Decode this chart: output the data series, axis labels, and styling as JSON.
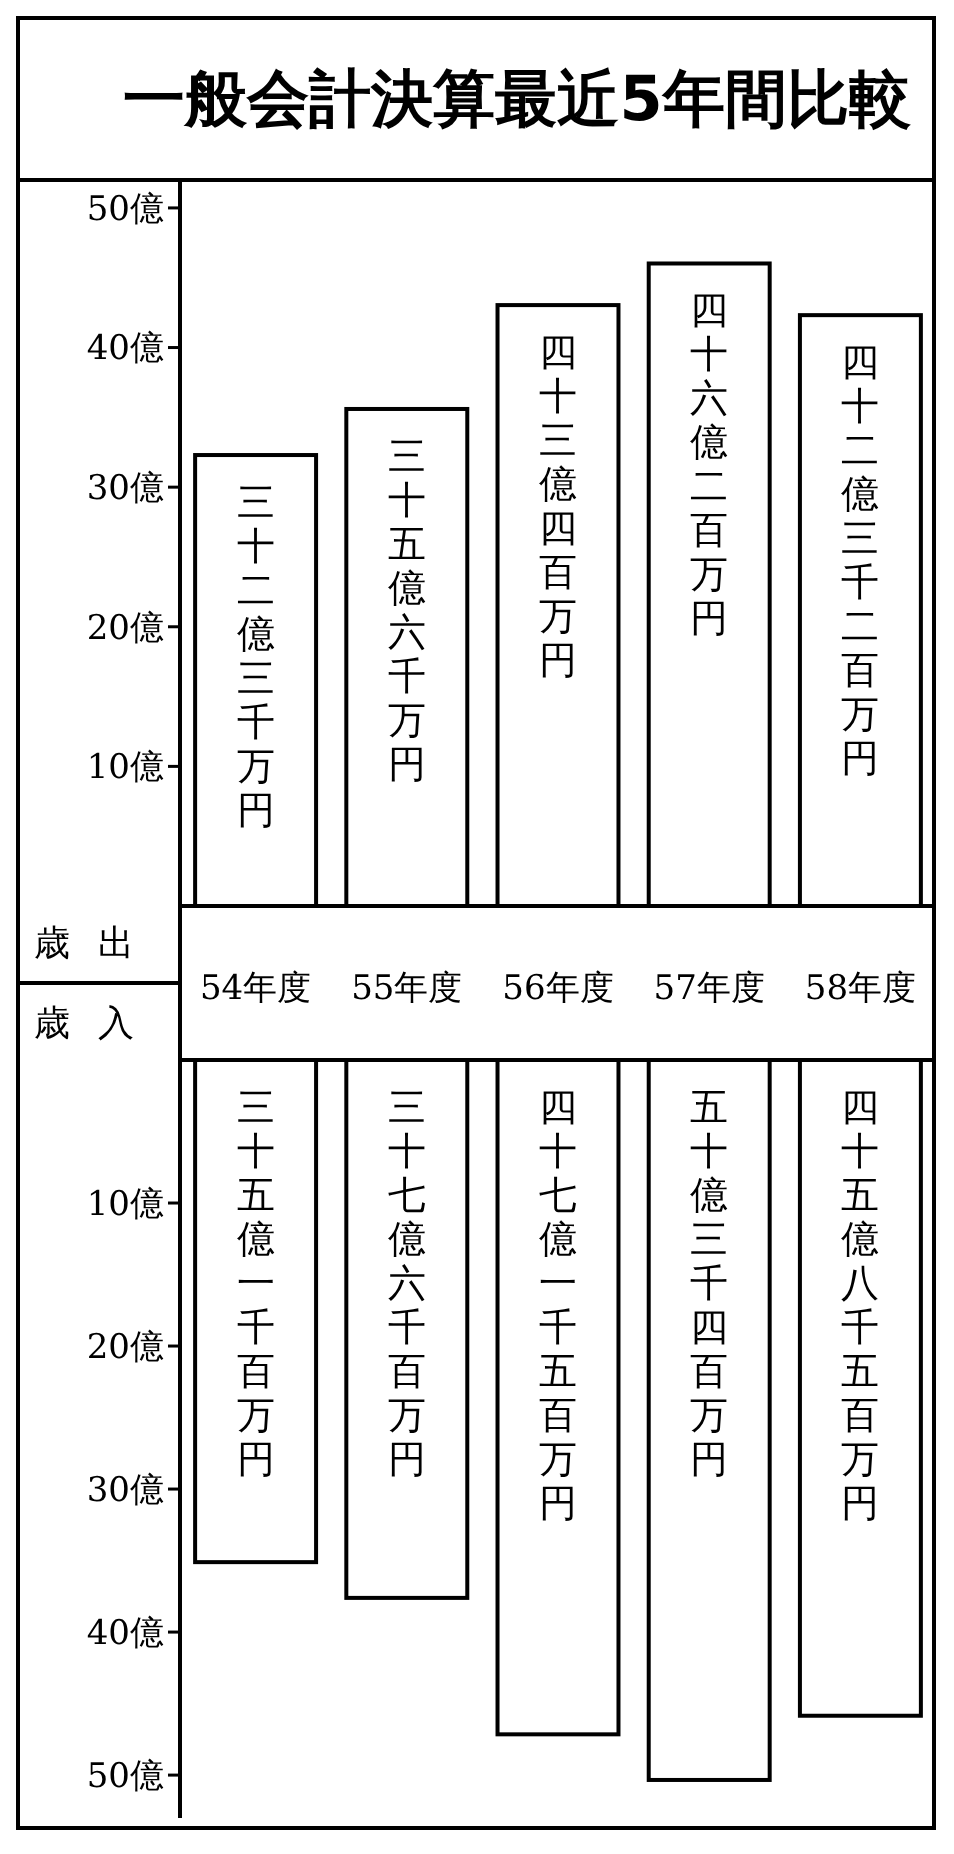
{
  "chart_data": [
    {
      "type": "bar",
      "title": "一般会計決算最近5年間比較",
      "ylabel": "歳出",
      "categories": [
        "54年度",
        "55年度",
        "56年度",
        "57年度",
        "58年度"
      ],
      "series": [
        {
          "color": "#ffffff",
          "values": [
            32.3,
            35.6,
            43.04,
            46.02,
            42.32
          ],
          "value_labels": [
            "三十二億三千万円",
            "三十五億六千万円",
            "四十三億四百万円",
            "四十六億二百万円",
            "四十二億三千二百万円"
          ]
        }
      ],
      "ylim": [
        0,
        52
      ],
      "yticks": [
        {
          "value": 10,
          "label": "10億"
        },
        {
          "value": 20,
          "label": "20億"
        },
        {
          "value": 30,
          "label": "30億"
        },
        {
          "value": 40,
          "label": "40億"
        },
        {
          "value": 50,
          "label": "50億"
        }
      ],
      "grid": false
    },
    {
      "type": "bar",
      "ylabel": "歳入",
      "categories": [
        null,
        null,
        null,
        null,
        null
      ],
      "series": [
        {
          "color": "#ffffff",
          "values": [
            35.11,
            37.61,
            47.15,
            50.34,
            45.85
          ],
          "value_labels": [
            "三十五億一千百万円",
            "三十七億六千百万円",
            "四十七億一千五百万円",
            "五十億三千四百万円",
            "四十五億八千五百万円"
          ]
        }
      ],
      "ylim": [
        53,
        0
      ],
      "yticks": [
        {
          "value": 10,
          "label": "10億"
        },
        {
          "value": 20,
          "label": "20億"
        },
        {
          "value": 30,
          "label": "30億"
        },
        {
          "value": 40,
          "label": "40億"
        },
        {
          "value": 50,
          "label": "50億"
        }
      ],
      "tick_labels": "y",
      "grid": false
    }
  ]
}
